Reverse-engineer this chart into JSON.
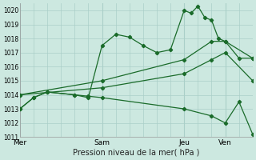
{
  "xlabel": "Pression niveau de la mer( hPa )",
  "bg_color": "#cce8e0",
  "grid_color": "#aacfc8",
  "line_color": "#1a6b2a",
  "ylim": [
    1011,
    1020.5
  ],
  "yticks": [
    1011,
    1012,
    1013,
    1014,
    1015,
    1016,
    1017,
    1018,
    1019,
    1020
  ],
  "xtick_labels": [
    "Mer",
    "Sam",
    "Jeu",
    "Ven"
  ],
  "xtick_positions": [
    0,
    24,
    48,
    60
  ],
  "xlim": [
    0,
    68
  ],
  "vline_major": [
    0,
    24,
    48,
    60
  ],
  "vline_minor_step": 4,
  "lines": [
    {
      "x": [
        0,
        4,
        8,
        16,
        20,
        24,
        28,
        32,
        36,
        40,
        44,
        48,
        50,
        52,
        54,
        56,
        58,
        60,
        64,
        68
      ],
      "y": [
        1013.0,
        1013.8,
        1014.2,
        1014.0,
        1013.8,
        1017.5,
        1018.3,
        1018.1,
        1017.5,
        1017.0,
        1017.2,
        1020.0,
        1019.8,
        1020.3,
        1019.5,
        1019.3,
        1018.0,
        1017.8,
        1016.6,
        1016.6
      ]
    },
    {
      "x": [
        0,
        24,
        48,
        56,
        60,
        68
      ],
      "y": [
        1014.0,
        1015.0,
        1016.5,
        1017.8,
        1017.8,
        1016.6
      ]
    },
    {
      "x": [
        0,
        24,
        48,
        56,
        60,
        68
      ],
      "y": [
        1014.0,
        1014.5,
        1015.5,
        1016.5,
        1017.0,
        1015.0
      ]
    },
    {
      "x": [
        0,
        4,
        8,
        16,
        20,
        24,
        48,
        56,
        60,
        64,
        68
      ],
      "y": [
        1013.0,
        1013.8,
        1014.2,
        1014.0,
        1013.9,
        1013.8,
        1013.0,
        1012.5,
        1012.0,
        1013.5,
        1011.2
      ]
    }
  ]
}
